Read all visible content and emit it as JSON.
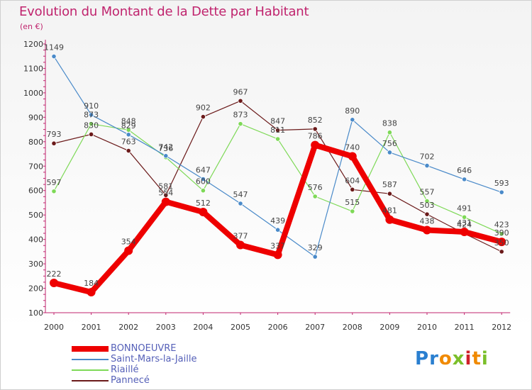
{
  "title": "Evolution du Montant de la Dette par Habitant",
  "unit": "(en €)",
  "logo_text": "Proxiti",
  "chart_data": {
    "type": "line",
    "title": "Evolution du Montant de la Dette par Habitant",
    "ylabel": "(en €)",
    "xlabel": "",
    "x": [
      "2000",
      "2001",
      "2002",
      "2003",
      "2004",
      "2005",
      "2006",
      "2007",
      "2008",
      "2009",
      "2010",
      "2011",
      "2012"
    ],
    "yticks": [
      100,
      200,
      300,
      400,
      500,
      600,
      700,
      800,
      900,
      1000,
      1100,
      1200
    ],
    "ylim": [
      100,
      1200
    ],
    "grid": false,
    "legend_position": "bottom-left",
    "series": [
      {
        "name": "Pannecé",
        "color": "#6b1a1a",
        "values": [
          793,
          830,
          763,
          581,
          902,
          967,
          847,
          852,
          604,
          587,
          503,
          424,
          350
        ],
        "labels": [
          "793",
          "830",
          "763",
          "581",
          "902",
          "967",
          "847",
          "852",
          "604",
          "587",
          "503",
          "424",
          "350"
        ]
      },
      {
        "name": "Riaillé",
        "color": "#7ed957",
        "values": [
          597,
          873,
          848,
          736,
          600,
          873,
          811,
          576,
          515,
          838,
          557,
          491,
          423
        ],
        "labels": [
          "597",
          "873",
          "848",
          "736",
          "600",
          "873",
          "811",
          "576",
          "515",
          "838",
          "557",
          "491",
          "423"
        ]
      },
      {
        "name": "Saint-Mars-la-Jaille",
        "color": "#4a8ac9",
        "values": [
          1149,
          910,
          829,
          742,
          647,
          547,
          439,
          329,
          890,
          756,
          702,
          646,
          593
        ],
        "labels": [
          "1149",
          "910",
          "829",
          "742",
          "647",
          "547",
          "439",
          "329",
          "890",
          "756",
          "702",
          "646",
          "593"
        ]
      },
      {
        "name": "BONNOEUVRE",
        "color": "#ee0000",
        "values": [
          222,
          184,
          354,
          554,
          512,
          377,
          337,
          786,
          740,
          481,
          438,
          431,
          390
        ],
        "labels": [
          "222",
          "184",
          "354",
          "554",
          "512",
          "377",
          "337",
          "786",
          "740",
          "481",
          "438",
          "431",
          "390"
        ]
      }
    ]
  }
}
